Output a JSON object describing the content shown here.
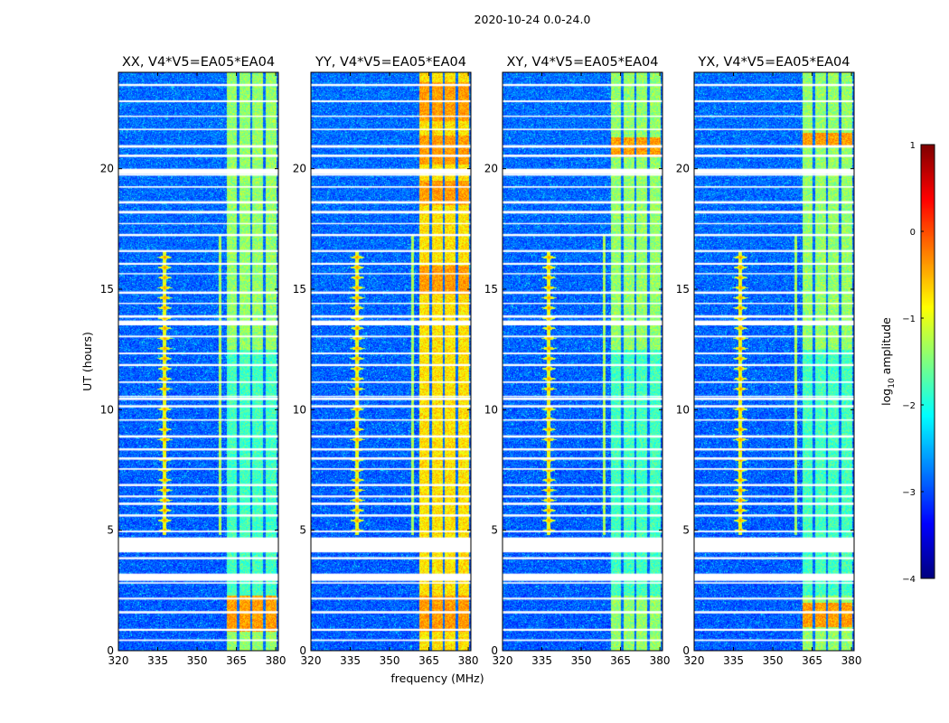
{
  "chart_data": {
    "type": "heatmap",
    "suptitle": "2020-10-24 0.0-24.0",
    "xlabel": "frequency (MHz)",
    "ylabel": "UT (hours)",
    "xlim": [
      320,
      381
    ],
    "ylim": [
      0,
      24
    ],
    "xticks": [
      320,
      335,
      350,
      365,
      380
    ],
    "yticks": [
      0,
      5,
      10,
      15,
      20
    ],
    "colormap": "jet",
    "colorbar": {
      "label": "log10 amplitude",
      "label_main": "log",
      "label_sub": "10",
      "label_suffix": " amplitude",
      "range": [
        -4,
        1
      ],
      "ticks": [
        "1",
        "0",
        "−1",
        "−2",
        "−3",
        "−4"
      ]
    },
    "panels": [
      {
        "title": "XX, V4*V5=EA05*EA04",
        "pol": "XX",
        "band_level": 0.52,
        "hot_hours": [
          [
            0.8,
            2.3
          ]
        ]
      },
      {
        "title": "YY, V4*V5=EA05*EA04",
        "pol": "YY",
        "band_level": 0.65,
        "hot_hours": [
          [
            0.8,
            2.3
          ],
          [
            20.2,
            21.4
          ],
          [
            22.0,
            23.6
          ],
          [
            18.5,
            19.5
          ],
          [
            14.8,
            16.0
          ]
        ]
      },
      {
        "title": "XY, V4*V5=EA05*EA04",
        "pol": "XY",
        "band_level": 0.52,
        "hot_hours": [
          [
            20.5,
            21.3
          ]
        ]
      },
      {
        "title": "YX, V4*V5=EA05*EA04",
        "pol": "YX",
        "band_level": 0.52,
        "hot_hours": [
          [
            1.0,
            2.0
          ],
          [
            21.0,
            21.5
          ]
        ]
      }
    ],
    "rfi_lines_mhz": [
      337.5,
      358.5
    ],
    "band_mhz": [
      361.3,
      380.3
    ],
    "band_channel_gaps_mhz": [
      365.5,
      370.5,
      375.5
    ],
    "flagged_hours": [
      [
        4.1,
        4.7
      ],
      [
        2.9,
        3.2
      ],
      [
        19.8,
        20.0
      ],
      [
        13.5,
        13.7
      ],
      [
        10.4,
        10.5
      ]
    ]
  }
}
